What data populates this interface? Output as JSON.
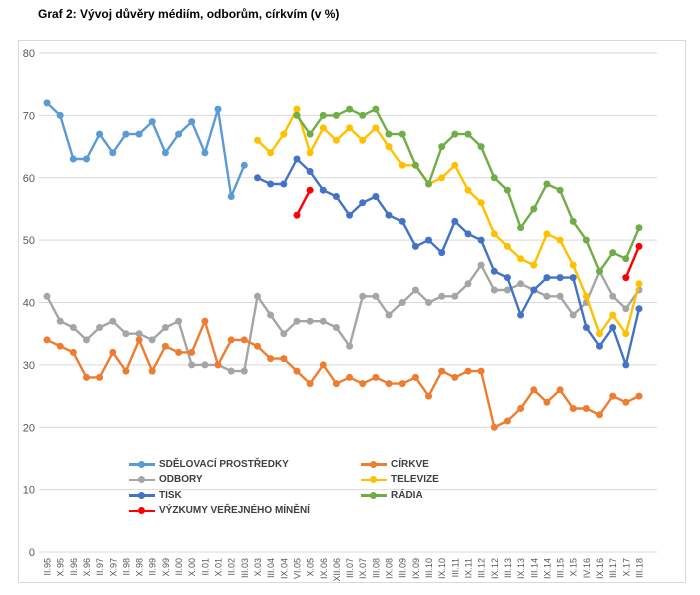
{
  "chart_title": "Graf 2: Vývoj důvěry médiím, odborům, církvím (v %)",
  "chart_data": {
    "type": "line",
    "title": "Graf 2: Vývoj důvěry médiím, odborům, církvím (v %)",
    "xlabel": "",
    "ylabel": "",
    "ylim": [
      0,
      80
    ],
    "yticks": [
      0,
      10,
      20,
      30,
      40,
      50,
      60,
      70,
      80
    ],
    "grid": true,
    "grid_color": "#d9d9d9",
    "axis_text_color": "#595959",
    "legend_position": "bottom-inside",
    "categories": [
      "II.95",
      "X.95",
      "II.96",
      "X.96",
      "II.97",
      "X.97",
      "II.98",
      "X.98",
      "II.99",
      "X.99",
      "II.00",
      "X.00",
      "II.01",
      "X.01",
      "II.02",
      "III.03",
      "X.03",
      "III.04",
      "IX.04",
      "VI.05",
      "X.05",
      "IX.06",
      "XII.06",
      "III.07",
      "IX.07",
      "III.08",
      "IX.08",
      "III.09",
      "IX.09",
      "III.10",
      "IX.10",
      "III.11",
      "IX.11",
      "III.12",
      "IX.12",
      "III.13",
      "IX.13",
      "III.14",
      "IX.14",
      "III.15",
      "X.15",
      "IV.16",
      "IX.16",
      "III.17",
      "X.17",
      "III.18"
    ],
    "series": [
      {
        "name": "SDĚLOVACÍ PROSTŘEDKY",
        "color": "#5B9BD5",
        "values": [
          72,
          70,
          63,
          63,
          67,
          64,
          67,
          67,
          69,
          64,
          67,
          69,
          64,
          71,
          57,
          62,
          null,
          null,
          null,
          null,
          null,
          null,
          null,
          null,
          null,
          null,
          null,
          null,
          null,
          null,
          null,
          null,
          null,
          null,
          null,
          null,
          null,
          null,
          null,
          null,
          null,
          null,
          null,
          null,
          null,
          null
        ]
      },
      {
        "name": "ODBORY",
        "color": "#A5A5A5",
        "values": [
          41,
          37,
          36,
          34,
          36,
          37,
          35,
          35,
          34,
          36,
          37,
          30,
          30,
          30,
          29,
          29,
          41,
          38,
          35,
          37,
          37,
          37,
          36,
          33,
          41,
          41,
          38,
          40,
          42,
          40,
          41,
          41,
          43,
          46,
          42,
          42,
          43,
          42,
          41,
          41,
          38,
          40,
          45,
          41,
          39,
          42
        ]
      },
      {
        "name": "TISK",
        "color": "#4472C4",
        "values": [
          null,
          null,
          null,
          null,
          null,
          null,
          null,
          null,
          null,
          null,
          null,
          null,
          null,
          null,
          null,
          null,
          60,
          59,
          59,
          63,
          61,
          58,
          57,
          54,
          56,
          57,
          54,
          53,
          49,
          50,
          48,
          53,
          51,
          50,
          45,
          44,
          38,
          42,
          44,
          44,
          44,
          36,
          33,
          36,
          30,
          39
        ]
      },
      {
        "name": "CÍRKVE",
        "color": "#ED7D31",
        "values": [
          34,
          33,
          32,
          28,
          28,
          32,
          29,
          34,
          29,
          33,
          32,
          32,
          37,
          30,
          34,
          34,
          33,
          31,
          31,
          29,
          27,
          30,
          27,
          28,
          27,
          28,
          27,
          27,
          28,
          25,
          29,
          28,
          29,
          29,
          20,
          21,
          23,
          26,
          24,
          26,
          23,
          23,
          22,
          25,
          24,
          25
        ]
      },
      {
        "name": "TELEVIZE",
        "color": "#FFC000",
        "values": [
          null,
          null,
          null,
          null,
          null,
          null,
          null,
          null,
          null,
          null,
          null,
          null,
          null,
          null,
          null,
          null,
          66,
          64,
          67,
          71,
          64,
          68,
          66,
          68,
          66,
          68,
          65,
          62,
          62,
          59,
          60,
          62,
          58,
          56,
          51,
          49,
          47,
          46,
          51,
          50,
          46,
          41,
          35,
          38,
          35,
          43
        ]
      },
      {
        "name": "RÁDIA",
        "color": "#70AD47",
        "values": [
          null,
          null,
          null,
          null,
          null,
          null,
          null,
          null,
          null,
          null,
          null,
          null,
          null,
          null,
          null,
          null,
          null,
          null,
          null,
          70,
          67,
          70,
          70,
          71,
          70,
          71,
          67,
          67,
          62,
          59,
          65,
          67,
          67,
          65,
          60,
          58,
          52,
          55,
          59,
          58,
          53,
          50,
          45,
          48,
          47,
          52
        ]
      },
      {
        "name": "VÝZKUMY VEŘEJNÉHO MÍNĚNÍ",
        "color": "#FF0000",
        "values": [
          null,
          null,
          null,
          null,
          null,
          null,
          null,
          null,
          null,
          null,
          null,
          null,
          null,
          null,
          null,
          null,
          null,
          null,
          null,
          54,
          58,
          null,
          null,
          null,
          null,
          null,
          null,
          null,
          null,
          null,
          null,
          null,
          null,
          null,
          null,
          null,
          null,
          null,
          null,
          null,
          null,
          null,
          null,
          null,
          44,
          49
        ]
      }
    ],
    "legend_columns": {
      "left": [
        "SDĚLOVACÍ PROSTŘEDKY",
        "ODBORY",
        "TISK",
        "VÝZKUMY VEŘEJNÉHO MÍNĚNÍ"
      ],
      "right": [
        "CÍRKVE",
        "TELEVIZE",
        "RÁDIA"
      ]
    }
  }
}
